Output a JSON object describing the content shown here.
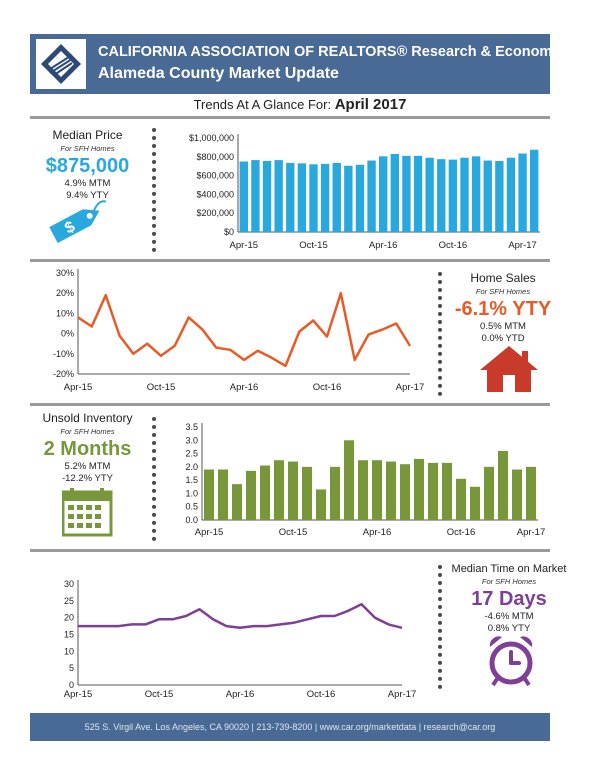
{
  "header": {
    "title": "CALIFORNIA ASSOCIATION OF REALTORS® Research & Economics",
    "subtitle": "Alameda County Market Update"
  },
  "trend": {
    "label": "Trends At A Glance For:",
    "period": "April 2017"
  },
  "panels": {
    "price": {
      "title": "Median Price",
      "sub": "For SFH Homes",
      "big": "$875,000",
      "line1": "4.9% MTM",
      "line2": "9.4% YTY"
    },
    "sales": {
      "title": "Home Sales",
      "sub": "For SFH Homes",
      "big": "-6.1% YTY",
      "line1": "0.5% MTM",
      "line2": "0.0% YTD"
    },
    "inventory": {
      "title": "Unsold Inventory",
      "sub": "For SFH Homes",
      "big": "2 Months",
      "line1": "5.2% MTM",
      "line2": "-12.2% YTY"
    },
    "dom": {
      "title": "Median Time on Market",
      "sub": "For SFH Homes",
      "big": "17 Days",
      "line1": "-4.6% MTM",
      "line2": "0.8% YTY"
    }
  },
  "colors": {
    "header": "#4a6a96",
    "price": "#29a8de",
    "sales": "#e65b26",
    "inventory": "#78973a",
    "dom": "#7e3f98"
  },
  "icons": {
    "price": "price-tag-icon",
    "sales": "house-icon",
    "inventory": "calendar-icon",
    "dom": "alarm-clock-icon"
  },
  "footer": "525 S. Virgil Ave. Los Angeles, CA 90020  |  213-739-8200  |  www.car.org/marketdata  |  research@car.org",
  "chart_data": [
    {
      "type": "bar",
      "x_tick_labels": [
        "Apr-15",
        "Oct-15",
        "Apr-16",
        "Oct-16",
        "Apr-17"
      ],
      "y_tick_labels": [
        "$0",
        "$200,000",
        "$400,000",
        "$600,000",
        "$800,000",
        "$1,000,000"
      ],
      "ylim": [
        0,
        1000000
      ],
      "values": [
        750000,
        765000,
        755000,
        765000,
        735000,
        730000,
        720000,
        725000,
        735000,
        705000,
        715000,
        760000,
        805000,
        830000,
        810000,
        810000,
        790000,
        775000,
        770000,
        790000,
        805000,
        760000,
        755000,
        790000,
        835000,
        875000
      ]
    },
    {
      "type": "line",
      "x_tick_labels": [
        "Apr-15",
        "Oct-15",
        "Apr-16",
        "Oct-16",
        "Apr-17"
      ],
      "y_tick_labels": [
        "-20%",
        "-10%",
        "0%",
        "10%",
        "20%",
        "30%"
      ],
      "ylim": [
        -20,
        30
      ],
      "values": [
        8,
        3.5,
        19,
        -1,
        -10,
        -5,
        -11,
        -6,
        8,
        2,
        -7,
        -8,
        -13,
        -8.5,
        -12,
        -16,
        1,
        6.5,
        -1.5,
        20,
        -13,
        -0.5,
        2,
        5,
        -6.1
      ]
    },
    {
      "type": "bar",
      "x_tick_labels": [
        "Apr-15",
        "Oct-15",
        "Apr-16",
        "Oct-16",
        "Apr-17"
      ],
      "y_tick_labels": [
        "0.0",
        "0.5",
        "1.0",
        "1.5",
        "2.0",
        "2.5",
        "3.0",
        "3.5"
      ],
      "ylim": [
        0,
        3.5
      ],
      "values": [
        1.9,
        1.9,
        1.35,
        1.85,
        2.05,
        2.25,
        2.2,
        2.0,
        1.15,
        2.0,
        3.0,
        2.25,
        2.25,
        2.2,
        2.1,
        2.3,
        2.15,
        2.15,
        1.55,
        1.25,
        2.0,
        2.6,
        1.9,
        2.0
      ]
    },
    {
      "type": "line",
      "x_tick_labels": [
        "Apr-15",
        "Oct-15",
        "Apr-16",
        "Oct-16",
        "Apr-17"
      ],
      "y_tick_labels": [
        "0",
        "5",
        "10",
        "15",
        "20",
        "25",
        "30"
      ],
      "ylim": [
        0,
        30
      ],
      "values": [
        17.5,
        17.5,
        17.5,
        17.5,
        18,
        18,
        19.5,
        19.5,
        20.5,
        22.5,
        19.5,
        17.5,
        17,
        17.5,
        17.5,
        18,
        18.5,
        19.5,
        20.5,
        20.5,
        22,
        24,
        20,
        18,
        17
      ]
    }
  ]
}
